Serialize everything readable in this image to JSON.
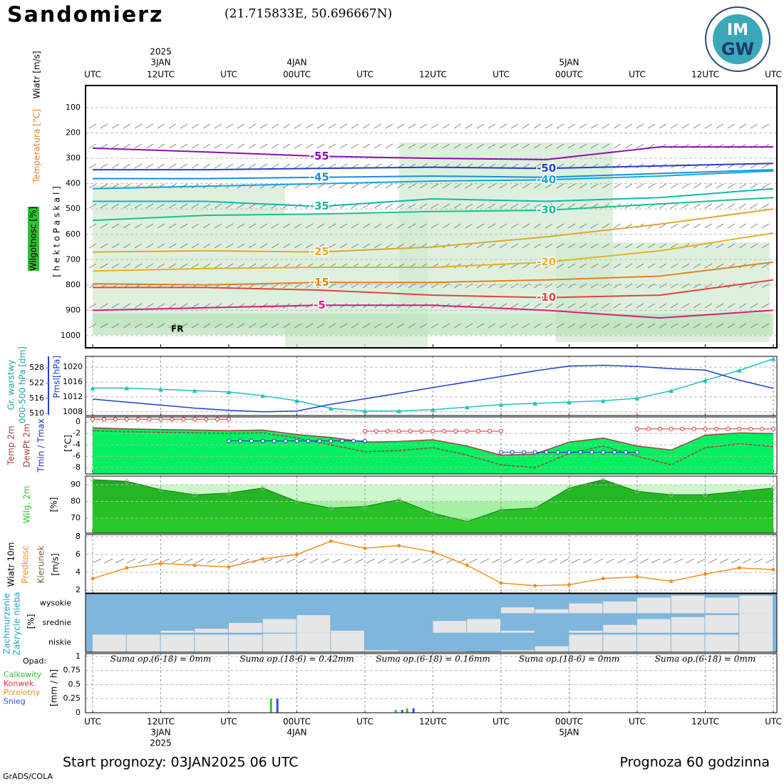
{
  "header": {
    "title": "Sandomierz",
    "coords": "(21.715833E, 50.696667N)",
    "logo_top": "IM",
    "logo_bottom": "GW"
  },
  "time_axis": {
    "xlim": [
      0,
      60
    ],
    "xticks": [
      {
        "value": 0,
        "label": "UTC"
      },
      {
        "value": 6,
        "label": "12UTC"
      },
      {
        "value": 12,
        "label": "UTC"
      },
      {
        "value": 18,
        "label": "00UTC"
      },
      {
        "value": 24,
        "label": "UTC"
      },
      {
        "value": 30,
        "label": "12UTC"
      },
      {
        "value": 36,
        "label": "UTC"
      },
      {
        "value": 42,
        "label": "00UTC"
      },
      {
        "value": 48,
        "label": "UTC"
      },
      {
        "value": 54,
        "label": "12UTC"
      },
      {
        "value": 60,
        "label": "UTC"
      }
    ],
    "dates": [
      {
        "value": 6,
        "label": "3JAN"
      },
      {
        "value": 18,
        "label": "4JAN"
      },
      {
        "value": 42,
        "label": "5JAN"
      }
    ],
    "year": {
      "value": 6,
      "label": "2025"
    }
  },
  "footer": {
    "start": "Start prognozy: 03JAN2025 06 UTC",
    "length": "Prognoza 60 godzinna",
    "credit": "GrADS/COLA"
  },
  "chart_data": [
    {
      "type": "contour",
      "labels": {
        "wind": "Wiatr [m/s]",
        "temperature": "Temperatura [°C]",
        "humidity": "Wilgotnosc [%]",
        "pressure": "[ h e k t o P a s k a l ]"
      },
      "annotation": "FR",
      "ylim": [
        12.7,
        1048
      ],
      "inverted": true,
      "yticks": [
        100,
        200,
        300,
        400,
        500,
        600,
        700,
        800,
        900,
        1000
      ],
      "x": [
        0,
        10,
        20,
        30,
        40,
        50,
        60
      ],
      "series": [
        {
          "name": "-55",
          "color": "#8a10b0",
          "values": [
            260,
            275,
            292,
            300,
            305,
            255,
            255
          ]
        },
        {
          "name": "-50",
          "color": "#2040d0",
          "values": [
            345,
            345,
            340,
            335,
            340,
            330,
            320
          ]
        },
        {
          "name": "-45",
          "color": "#1a8ee0",
          "values": [
            380,
            380,
            375,
            370,
            375,
            360,
            345
          ]
        },
        {
          "name": "-40",
          "color": "#10a8e0",
          "values": [
            420,
            410,
            400,
            390,
            385,
            370,
            350
          ]
        },
        {
          "name": "-35",
          "color": "#10b8b0",
          "values": [
            470,
            470,
            490,
            460,
            470,
            455,
            420
          ]
        },
        {
          "name": "-30",
          "color": "#18c090",
          "values": [
            545,
            525,
            520,
            510,
            505,
            480,
            455
          ]
        },
        {
          "name": "-25",
          "color": "#e0a830",
          "values": [
            670,
            665,
            670,
            650,
            610,
            560,
            500
          ]
        },
        {
          "name": "-20",
          "color": "#e8b020",
          "values": [
            745,
            735,
            730,
            730,
            710,
            665,
            595
          ]
        },
        {
          "name": "-15",
          "color": "#e88020",
          "values": [
            795,
            800,
            790,
            790,
            780,
            765,
            710
          ]
        },
        {
          "name": "-10",
          "color": "#e84040",
          "values": [
            810,
            810,
            820,
            840,
            850,
            840,
            780
          ]
        },
        {
          "name": "-5",
          "color": "#e01880",
          "values": [
            900,
            890,
            880,
            880,
            900,
            930,
            900
          ]
        }
      ]
    },
    {
      "type": "line",
      "ylim": [
        509.2,
        532.5
      ],
      "yticks": [
        510,
        516,
        522,
        528
      ],
      "y2lim": [
        1007,
        1022.9
      ],
      "y2ticks": [
        1008,
        1012,
        1016,
        1020
      ],
      "x": [
        0,
        3,
        6,
        9,
        12,
        15,
        18,
        21,
        24,
        27,
        30,
        33,
        36,
        39,
        42,
        45,
        48,
        51,
        54,
        57,
        60
      ],
      "series": [
        {
          "name": "Gr. warstwy",
          "unit": "000-500 hPa [dm]",
          "color": "#20c0c0",
          "values": [
            520,
            520,
            519.5,
            519,
            518.5,
            517,
            515,
            512,
            511,
            511,
            511.5,
            512.5,
            513.5,
            514,
            514.5,
            515,
            516,
            519,
            523,
            527,
            531.5
          ]
        },
        {
          "name": "Pmsl",
          "unit": "[hPa]",
          "color": "#2040d0",
          "axis": "y2",
          "values": [
            1011.4,
            1010.6,
            1009.8,
            1009,
            1008.4,
            1008,
            1008.2,
            1010,
            1011.5,
            1013,
            1014.5,
            1016,
            1017.5,
            1019,
            1020.3,
            1020.5,
            1020.2,
            1019.6,
            1019.2,
            1016.5,
            1014.3
          ]
        }
      ]
    },
    {
      "type": "area",
      "unit": "[°C]",
      "minmax_label": "Tmin / Tmax",
      "ylim": [
        -9.1,
        0.9
      ],
      "yticks": [
        0,
        -2,
        -4,
        -6,
        -8
      ],
      "x": [
        0,
        3,
        6,
        9,
        12,
        15,
        18,
        21,
        24,
        27,
        30,
        33,
        36,
        39,
        42,
        45,
        48,
        51,
        54,
        57,
        60
      ],
      "series": [
        {
          "name": "Temp 2m",
          "color": "#a04040",
          "fill": "#00f060",
          "values": [
            -1,
            -1.2,
            -1.3,
            -1.4,
            -1.5,
            -1.4,
            -2.2,
            -2.7,
            -3.5,
            -3.4,
            -3.1,
            -4.2,
            -5.8,
            -5.6,
            -3.5,
            -2.8,
            -4.2,
            -4.9,
            -2.3,
            -1.9,
            -2
          ]
        },
        {
          "name": "DewPt 2m",
          "color": "#a04040",
          "dashed": true,
          "values": [
            -1.5,
            -1.7,
            -1.8,
            -1.9,
            -2,
            -1.9,
            -2.8,
            -4,
            -5.2,
            -5,
            -4.5,
            -5.8,
            -7.5,
            -8,
            -5.5,
            -4.2,
            -6,
            -7.5,
            -4.5,
            -3.8,
            -4.3
          ]
        }
      ],
      "tmax": {
        "color": "#e03030",
        "segments": [
          {
            "start": 0,
            "end": 12,
            "value": 0.5
          },
          {
            "start": 24,
            "end": 36,
            "value": -1.6
          },
          {
            "start": 48,
            "end": 60,
            "value": -1.2
          }
        ]
      },
      "tmin": {
        "color": "#2030c0",
        "segments": [
          {
            "start": 12,
            "end": 24,
            "value": -3.3
          },
          {
            "start": 36,
            "end": 48,
            "value": -5.3
          }
        ]
      }
    },
    {
      "type": "humidity",
      "name": "Wilg. 2m",
      "unit": "[%]",
      "color": "#1faa1f",
      "ylim": [
        61.1,
        95.1
      ],
      "yticks": [
        70,
        80,
        90
      ],
      "x": [
        0,
        3,
        6,
        9,
        12,
        15,
        18,
        21,
        24,
        27,
        30,
        33,
        36,
        39,
        42,
        45,
        48,
        51,
        54,
        57,
        60
      ],
      "values": [
        93,
        92,
        87,
        84,
        85,
        88,
        80,
        76,
        77,
        81,
        73,
        68,
        75,
        76,
        88,
        93,
        86,
        84,
        84,
        86,
        88
      ]
    },
    {
      "type": "wind",
      "name": "Wiatr 10m",
      "speed_label": "Predkosc",
      "direction_label": "Kierunek",
      "unit": "[m/s]",
      "color": "#f09020",
      "ylim": [
        1.68,
        8.24
      ],
      "yticks": [
        2,
        4,
        6,
        8
      ],
      "x": [
        0,
        3,
        6,
        9,
        12,
        15,
        18,
        21,
        24,
        27,
        30,
        33,
        36,
        39,
        42,
        45,
        48,
        51,
        54,
        57,
        60
      ],
      "values": [
        3.3,
        4.5,
        5,
        4.8,
        4.6,
        5.5,
        6,
        7.5,
        6.7,
        7,
        6.3,
        4.8,
        2.8,
        2.5,
        2.6,
        3.3,
        3.5,
        3,
        3.8,
        4.5,
        4.3
      ]
    },
    {
      "type": "cloud",
      "name": "Zachmurzenie",
      "subname": "Zakrycie nieba",
      "unit": "[%]",
      "categories": [
        "wysokie",
        "srednie",
        "niskie"
      ],
      "x": [
        0,
        3,
        6,
        9,
        12,
        15,
        18,
        21,
        24,
        27,
        30,
        33,
        36,
        39,
        42,
        45,
        48,
        51,
        54,
        57
      ],
      "series": [
        {
          "name": "wysokie",
          "values": [
            0,
            0,
            0,
            0,
            0,
            0,
            0,
            0,
            0,
            0,
            0,
            0,
            30,
            20,
            50,
            60,
            80,
            90,
            80,
            90
          ]
        },
        {
          "name": "srednie",
          "values": [
            0,
            0,
            10,
            20,
            50,
            70,
            90,
            10,
            0,
            0,
            60,
            70,
            10,
            0,
            10,
            40,
            70,
            80,
            90,
            100
          ]
        },
        {
          "name": "niskie",
          "values": [
            90,
            90,
            90,
            90,
            90,
            95,
            100,
            100,
            10,
            5,
            5,
            0,
            10,
            30,
            90,
            90,
            90,
            90,
            90,
            100
          ]
        }
      ]
    },
    {
      "type": "bar",
      "title": "Opad:",
      "unit": "[mm / h]",
      "ylim": [
        0,
        1.05
      ],
      "yticks": [
        0,
        0.25,
        0.5,
        0.75,
        1
      ],
      "x": [
        16,
        27,
        28
      ],
      "series": [
        {
          "name": "Calkowity",
          "color": "#30c030",
          "values": [
            0.25,
            0.05,
            0.08
          ]
        },
        {
          "name": "Konwek.",
          "color": "#e03030",
          "values": [
            0,
            0,
            0
          ]
        },
        {
          "name": "Przelotny",
          "color": "#f09020",
          "values": [
            0,
            0,
            0
          ]
        },
        {
          "name": "Snieg",
          "color": "#3050e0",
          "values": [
            0.25,
            0.05,
            0.08
          ]
        }
      ],
      "sums": [
        "Suma op.(6-18) = 0mm",
        "Suma op.(18-6) = 0.42mm",
        "Suma op.(6-18) = 0.16mm",
        "Suma op.(18-6) = 0mm",
        "Suma op.(6-18) = 0mm"
      ]
    }
  ]
}
